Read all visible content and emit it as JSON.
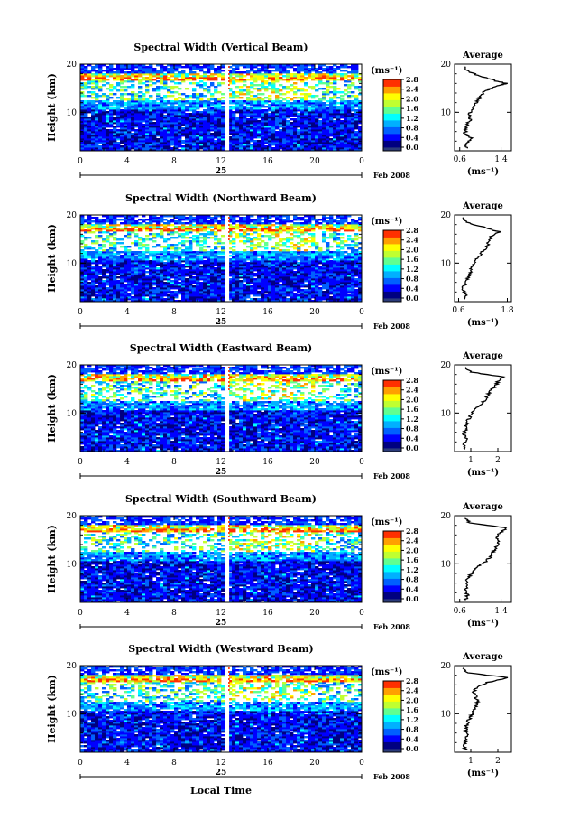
{
  "colors": {
    "colorbar_stops": [
      "#000080",
      "#0000ff",
      "#0060ff",
      "#00b0ff",
      "#00ffff",
      "#60ff90",
      "#c0ff30",
      "#ffff00",
      "#ffa000",
      "#ff3000",
      "#c00000"
    ],
    "floor_color": "#2a3a7a",
    "gap_color": "#ffffff",
    "line_color": "#000000"
  },
  "figure": {
    "time_axis_label": "Local Time",
    "date_day": "25",
    "date_month_year": "Feb 2008",
    "colorbar_unit": "(ms⁻¹)",
    "colorbar_ticks": [
      "0.0",
      "0.4",
      "0.8",
      "1.2",
      "1.6",
      "2.0",
      "2.4",
      "2.8"
    ],
    "y_label": "Height (km)",
    "x_ticks": [
      "0",
      "4",
      "8",
      "12",
      "16",
      "20",
      "0"
    ],
    "avg_title": "Average",
    "avg_xlabel": "(ms⁻¹)"
  },
  "chart_data": [
    {
      "type": "heatmap",
      "title": "Spectral Width (Vertical Beam)",
      "xlabel": "Local Time",
      "ylabel": "Height (km)",
      "x_range_hours": [
        0,
        24
      ],
      "y_range_km": [
        2,
        20
      ],
      "y_ticks": [
        "20",
        "10"
      ],
      "colorbar_range": [
        0.0,
        2.8
      ],
      "data_gap_hours": [
        12.4,
        12.7
      ],
      "tropopause_km": 17,
      "average_profile": {
        "x_ticks": [
          "0.6",
          "1.4"
        ],
        "x_range": [
          0.5,
          1.6
        ],
        "height_km": [
          2.5,
          3.5,
          4.5,
          5.5,
          6.5,
          7.5,
          8.5,
          9.5,
          10.5,
          11.5,
          12.5,
          13.5,
          14.5,
          15.5,
          16,
          16.5,
          17.5,
          18.5,
          19.5
        ],
        "width": [
          0.75,
          0.7,
          0.85,
          0.7,
          0.72,
          0.75,
          0.8,
          0.78,
          0.85,
          0.9,
          0.95,
          1.0,
          1.1,
          1.3,
          1.5,
          1.3,
          1.0,
          0.75,
          0.7
        ]
      }
    },
    {
      "type": "heatmap",
      "title": "Spectral Width (Northward Beam)",
      "xlabel": "Local Time",
      "ylabel": "Height (km)",
      "x_range_hours": [
        0,
        24
      ],
      "y_range_km": [
        2,
        20
      ],
      "y_ticks": [
        "20",
        "10"
      ],
      "colorbar_range": [
        0.0,
        2.8
      ],
      "data_gap_hours": [
        12.4,
        12.7
      ],
      "tropopause_km": 17,
      "average_profile": {
        "x_ticks": [
          "0.6",
          "1.8"
        ],
        "x_range": [
          0.5,
          1.9
        ],
        "height_km": [
          2.5,
          3.5,
          4.5,
          5.5,
          6.5,
          7.5,
          8.5,
          9.5,
          10.5,
          11.5,
          12.5,
          13.5,
          14.5,
          15.5,
          16.5,
          17.5,
          18.5,
          19.5
        ],
        "width": [
          0.75,
          0.8,
          0.7,
          0.75,
          0.8,
          0.85,
          0.9,
          0.95,
          1.0,
          1.1,
          1.2,
          1.3,
          1.35,
          1.4,
          1.6,
          1.2,
          0.8,
          0.7
        ]
      }
    },
    {
      "type": "heatmap",
      "title": "Spectral Width (Eastward Beam)",
      "xlabel": "Local Time",
      "ylabel": "Height (km)",
      "x_range_hours": [
        0,
        24
      ],
      "y_range_km": [
        2,
        20
      ],
      "y_ticks": [
        "20",
        "10"
      ],
      "colorbar_range": [
        0.0,
        2.8
      ],
      "data_gap_hours": [
        12.4,
        12.7
      ],
      "tropopause_km": 17,
      "average_profile": {
        "x_ticks": [
          "1",
          "2"
        ],
        "x_range": [
          0.4,
          2.5
        ],
        "height_km": [
          2.5,
          3.5,
          4.5,
          5.5,
          6.5,
          7.5,
          8.5,
          9.5,
          10.5,
          11.5,
          12.5,
          13.5,
          14.5,
          15.5,
          16.5,
          17.5,
          18.5,
          19.5
        ],
        "width": [
          0.8,
          0.7,
          0.85,
          0.75,
          0.8,
          0.85,
          0.9,
          1.0,
          1.1,
          1.3,
          1.5,
          1.6,
          1.7,
          1.9,
          2.0,
          2.2,
          1.0,
          0.8
        ]
      }
    },
    {
      "type": "heatmap",
      "title": "Spectral Width (Southward Beam)",
      "xlabel": "Local Time",
      "ylabel": "Height (km)",
      "x_range_hours": [
        0,
        24
      ],
      "y_range_km": [
        2,
        20
      ],
      "y_ticks": [
        "20",
        "10"
      ],
      "colorbar_range": [
        0.0,
        2.8
      ],
      "data_gap_hours": [
        12.4,
        12.7
      ],
      "tropopause_km": 17,
      "average_profile": {
        "x_ticks": [
          "0.6",
          "1.4"
        ],
        "x_range": [
          0.5,
          1.6
        ],
        "height_km": [
          2.5,
          3.5,
          4.5,
          5.5,
          6.5,
          7.5,
          8.5,
          9.5,
          10.5,
          11.5,
          12.5,
          13.5,
          14.5,
          15.5,
          16.5,
          17.5,
          18.5,
          19.5
        ],
        "width": [
          0.72,
          0.75,
          0.7,
          0.75,
          0.72,
          0.8,
          0.85,
          0.95,
          1.1,
          1.2,
          1.25,
          1.3,
          1.35,
          1.3,
          1.4,
          1.5,
          0.8,
          0.7
        ]
      }
    },
    {
      "type": "heatmap",
      "title": "Spectral Width (Westward Beam)",
      "xlabel": "Local Time",
      "ylabel": "Height (km)",
      "x_range_hours": [
        0,
        24
      ],
      "y_range_km": [
        2,
        20
      ],
      "y_ticks": [
        "20",
        "10"
      ],
      "colorbar_range": [
        0.0,
        2.8
      ],
      "data_gap_hours": [
        12.4,
        12.7
      ],
      "tropopause_km": 17,
      "average_profile": {
        "x_ticks": [
          "1",
          "2"
        ],
        "x_range": [
          0.4,
          2.5
        ],
        "height_km": [
          2.5,
          3.5,
          4.5,
          5.5,
          6.5,
          7.5,
          8.5,
          9.5,
          10.5,
          11.5,
          12.5,
          13.5,
          14.5,
          15.5,
          16.5,
          17.5,
          18.5,
          19.5
        ],
        "width": [
          0.8,
          0.75,
          0.8,
          0.85,
          0.8,
          0.85,
          0.9,
          1.0,
          1.1,
          1.2,
          1.25,
          1.2,
          1.1,
          1.2,
          1.6,
          2.4,
          0.9,
          0.7
        ]
      }
    }
  ]
}
